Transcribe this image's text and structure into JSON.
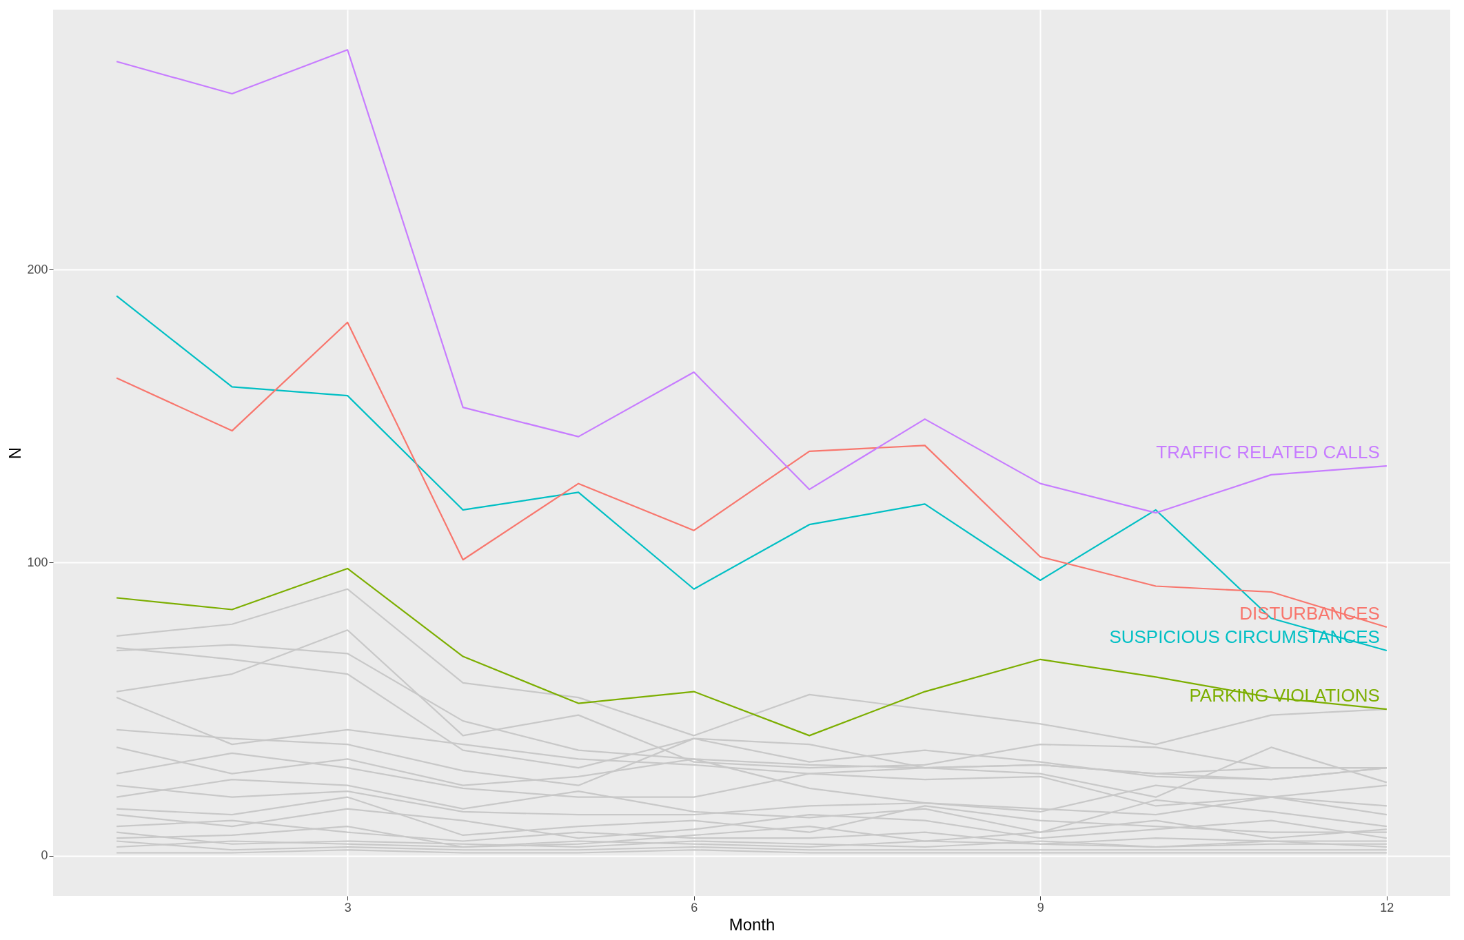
{
  "chart_data": {
    "type": "line",
    "xlabel": "Month",
    "ylabel": "N",
    "x": [
      1,
      2,
      3,
      4,
      5,
      6,
      7,
      8,
      9,
      10,
      11,
      12
    ],
    "xlim": [
      0.45,
      12.55
    ],
    "xticks": [
      3,
      6,
      9,
      12
    ],
    "ylim": [
      -13.7,
      288.7
    ],
    "yticks": [
      0,
      100,
      200
    ],
    "grid": true,
    "legend": false,
    "line_style": "solid",
    "marker": "none",
    "series": [
      {
        "color": "#c8c8c8",
        "values": [
          75,
          79,
          91,
          59,
          54,
          41,
          55,
          50,
          45,
          38,
          48,
          50
        ]
      },
      {
        "color": "#c8c8c8",
        "values": [
          70,
          72,
          69,
          46,
          36,
          33,
          31,
          30,
          31,
          28,
          26,
          30
        ]
      },
      {
        "color": "#c8c8c8",
        "values": [
          56,
          62,
          77,
          41,
          48,
          32,
          30,
          31,
          38,
          37,
          30,
          30
        ]
      },
      {
        "color": "#c8c8c8",
        "values": [
          71,
          67,
          62,
          36,
          30,
          40,
          38,
          30,
          31,
          28,
          30,
          30
        ]
      },
      {
        "color": "#c8c8c8",
        "values": [
          54,
          38,
          43,
          38,
          33,
          31,
          28,
          26,
          27,
          17,
          20,
          24
        ]
      },
      {
        "color": "#c8c8c8",
        "values": [
          43,
          40,
          38,
          29,
          24,
          40,
          32,
          36,
          32,
          27,
          26,
          30
        ]
      },
      {
        "color": "#c8c8c8",
        "values": [
          37,
          28,
          33,
          24,
          27,
          33,
          23,
          18,
          15,
          24,
          20,
          17
        ]
      },
      {
        "color": "#c8c8c8",
        "values": [
          28,
          35,
          30,
          23,
          20,
          20,
          28,
          30,
          28,
          20,
          37,
          25
        ]
      },
      {
        "color": "#c8c8c8",
        "values": [
          24,
          20,
          22,
          15,
          14,
          14,
          17,
          18,
          16,
          14,
          20,
          14
        ]
      },
      {
        "color": "#c8c8c8",
        "values": [
          20,
          26,
          24,
          16,
          22,
          15,
          13,
          16,
          8,
          19,
          15,
          10
        ]
      },
      {
        "color": "#c8c8c8",
        "values": [
          16,
          14,
          20,
          7,
          10,
          12,
          8,
          17,
          12,
          10,
          8,
          8
        ]
      },
      {
        "color": "#c8c8c8",
        "values": [
          14,
          10,
          16,
          12,
          6,
          9,
          14,
          12,
          6,
          9,
          12,
          6
        ]
      },
      {
        "color": "#c8c8c8",
        "values": [
          10,
          12,
          8,
          5,
          8,
          6,
          6,
          8,
          4,
          6,
          5,
          5
        ]
      },
      {
        "color": "#c8c8c8",
        "values": [
          8,
          4,
          5,
          4,
          3,
          5,
          4,
          3,
          5,
          3,
          4,
          4
        ]
      },
      {
        "color": "#c8c8c8",
        "values": [
          5,
          2,
          3,
          2,
          2,
          3,
          2,
          2,
          2,
          2,
          2,
          2
        ]
      },
      {
        "color": "#c8c8c8",
        "values": [
          1,
          1,
          2,
          1,
          1,
          2,
          1,
          1,
          1,
          1,
          1,
          1
        ]
      },
      {
        "color": "#c8c8c8",
        "values": [
          6,
          7,
          10,
          3,
          4,
          7,
          10,
          5,
          8,
          12,
          6,
          9
        ]
      },
      {
        "color": "#c8c8c8",
        "values": [
          3,
          5,
          4,
          3,
          5,
          4,
          3,
          5,
          4,
          3,
          5,
          3
        ]
      },
      {
        "name": "PARKING VIOLATIONS",
        "color": "#7cae00",
        "values": [
          88,
          84,
          98,
          68,
          52,
          56,
          41,
          56,
          67,
          61,
          54,
          50
        ]
      },
      {
        "name": "SUSPICIOUS CIRCUMSTANCES",
        "color": "#00bfc4",
        "values": [
          191,
          160,
          157,
          118,
          124,
          91,
          113,
          120,
          94,
          118,
          81,
          70
        ]
      },
      {
        "name": "DISTURBANCES",
        "color": "#f8766d",
        "values": [
          163,
          145,
          182,
          101,
          127,
          111,
          138,
          140,
          102,
          92,
          90,
          78
        ]
      },
      {
        "name": "TRAFFIC RELATED CALLS",
        "color": "#c77cff",
        "values": [
          271,
          260,
          275,
          153,
          143,
          165,
          125,
          149,
          127,
          117,
          130,
          133
        ]
      }
    ]
  }
}
